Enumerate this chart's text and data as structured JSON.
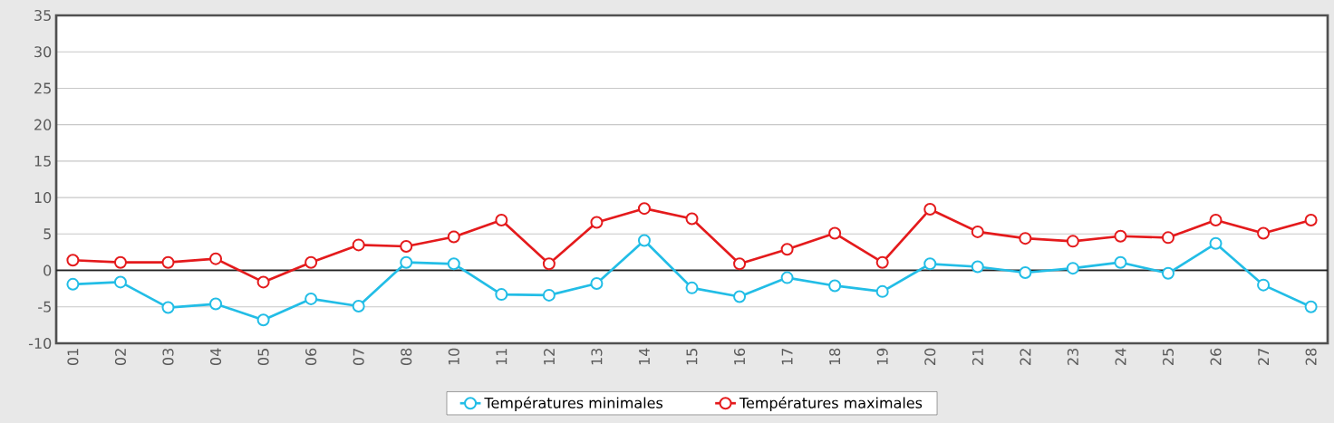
{
  "chart_data": {
    "type": "line",
    "categories": [
      "01",
      "02",
      "03",
      "04",
      "05",
      "06",
      "07",
      "08",
      "10",
      "11",
      "12",
      "13",
      "14",
      "15",
      "16",
      "17",
      "18",
      "19",
      "20",
      "21",
      "22",
      "23",
      "24",
      "25",
      "26",
      "27",
      "28"
    ],
    "series": [
      {
        "name": "Températures minimales",
        "color": "#22bde6",
        "values": [
          -1.9,
          -1.6,
          -5.1,
          -4.6,
          -6.8,
          -3.9,
          -4.9,
          1.1,
          0.9,
          -3.3,
          -3.4,
          -1.8,
          4.1,
          -2.4,
          -3.6,
          -1.0,
          -2.1,
          -2.9,
          0.9,
          0.5,
          -0.3,
          0.3,
          1.1,
          -0.4,
          3.7,
          -2.0,
          -5.0
        ]
      },
      {
        "name": "Températures maximales",
        "color": "#e41a1c",
        "values": [
          1.4,
          1.1,
          1.1,
          1.6,
          -1.6,
          1.1,
          3.5,
          3.3,
          4.6,
          6.9,
          0.9,
          6.6,
          8.5,
          7.1,
          0.9,
          2.9,
          5.1,
          1.1,
          8.4,
          5.3,
          4.4,
          4.0,
          4.7,
          4.5,
          6.9,
          5.1,
          6.9
        ]
      }
    ],
    "ylim": [
      -10,
      35
    ],
    "yticks": [
      -10,
      -5,
      0,
      5,
      10,
      15,
      20,
      25,
      30,
      35
    ],
    "grid": "y",
    "legend": "bottom",
    "marker": "circle",
    "line_style": "solid",
    "ref_lines": [
      {
        "axis": "y",
        "value": 0,
        "color": "#222222"
      }
    ]
  }
}
